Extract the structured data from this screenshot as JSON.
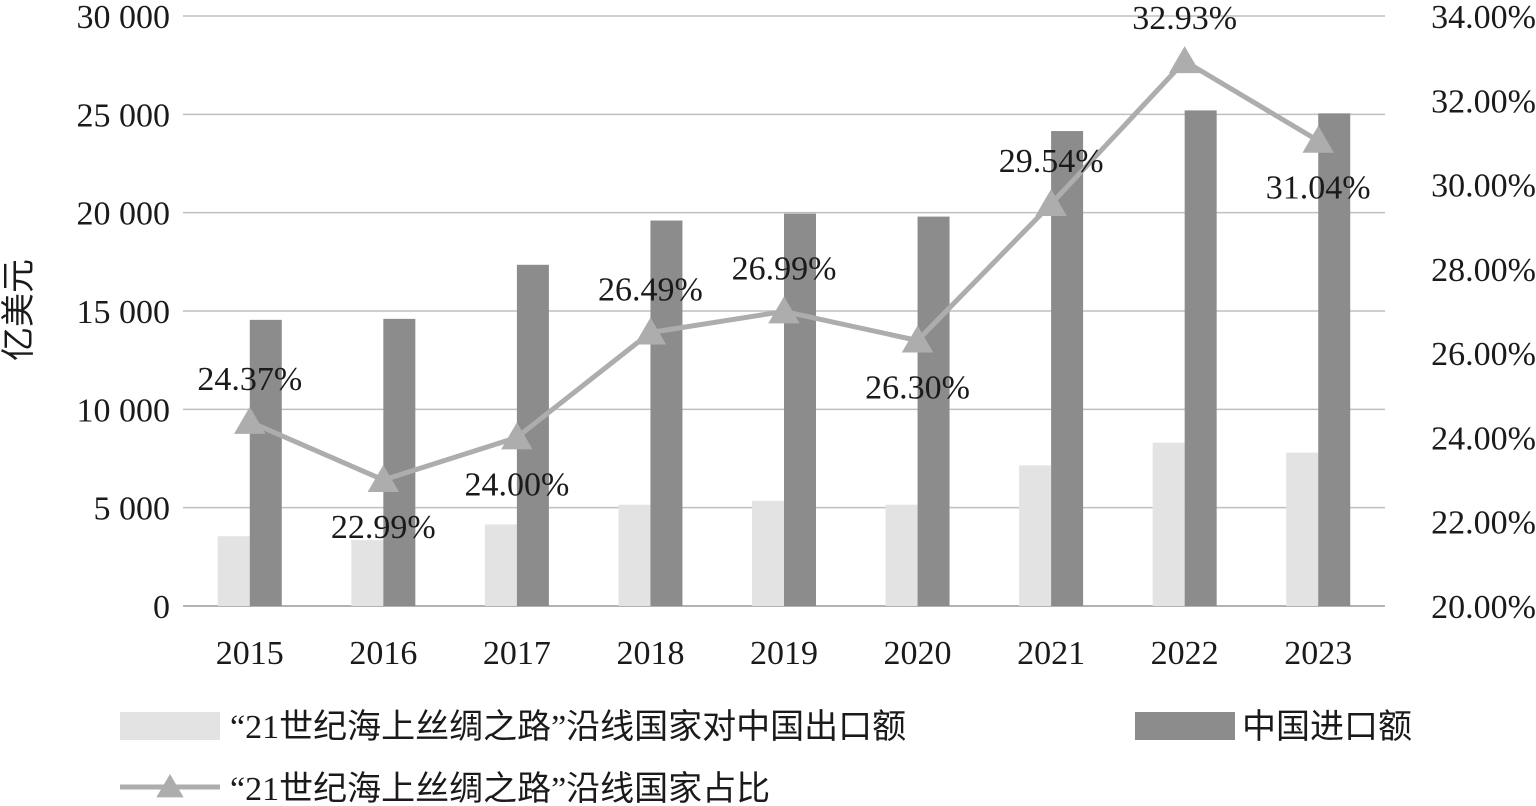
{
  "chart_data": {
    "type": "bar",
    "categories": [
      "2015",
      "2016",
      "2017",
      "2018",
      "2019",
      "2020",
      "2021",
      "2022",
      "2023"
    ],
    "ylabel": "亿美元",
    "y_ticks": [
      "0",
      "5 000",
      "10 000",
      "15 000",
      "20 000",
      "25 000",
      "30 000"
    ],
    "ylim": [
      0,
      30000
    ],
    "y2_ticks": [
      "20.00%",
      "22.00%",
      "24.00%",
      "26.00%",
      "28.00%",
      "30.00%",
      "32.00%",
      "34.00%"
    ],
    "y2lim": [
      20,
      34
    ],
    "grid": true,
    "legend_position": "bottom",
    "series": [
      {
        "name": "“21世纪海上丝绸之路”沿线国家对中国出口额",
        "type": "bar",
        "axis": "left",
        "color": "#e3e3e3",
        "values": [
          3550,
          3350,
          4150,
          5150,
          5350,
          5150,
          7150,
          8300,
          7800
        ]
      },
      {
        "name": "中国进口额",
        "type": "bar",
        "axis": "left",
        "color": "#8c8c8c",
        "values": [
          14550,
          14600,
          17350,
          19600,
          19950,
          19800,
          24150,
          25200,
          25050
        ]
      },
      {
        "name": "“21世纪海上丝绸之路”沿线国家占比",
        "type": "line",
        "axis": "right",
        "marker": "triangle",
        "color": "#adadad",
        "values": [
          24.37,
          22.99,
          24.0,
          26.49,
          26.99,
          26.3,
          29.54,
          32.93,
          31.04
        ],
        "labels": [
          "24.37%",
          "22.99%",
          "24.00%",
          "26.49%",
          "26.99%",
          "26.30%",
          "29.54%",
          "32.93%",
          "31.04%"
        ]
      }
    ]
  }
}
